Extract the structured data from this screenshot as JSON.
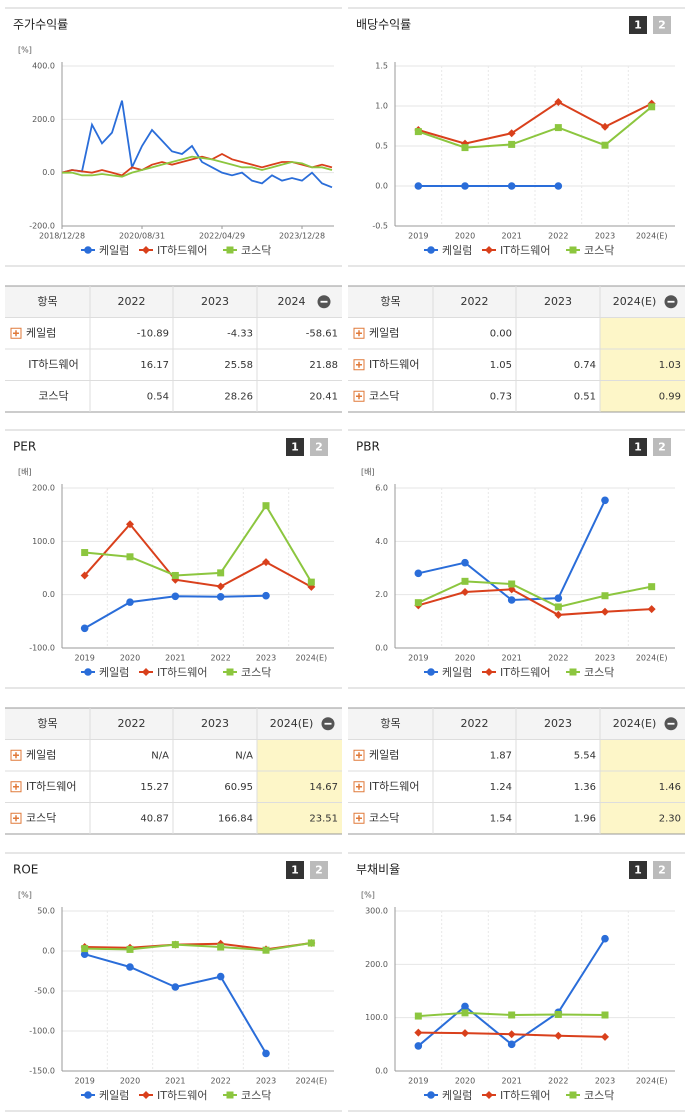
{
  "chart_data": [
    {
      "type": "line",
      "title": "주가수익률",
      "unit": "[%]",
      "markers": false,
      "categories": [
        "2018/12/28",
        null,
        null,
        null,
        null,
        null,
        null,
        null,
        "2020/08/31",
        null,
        null,
        null,
        null,
        null,
        null,
        null,
        "2022/04/29",
        null,
        null,
        null,
        null,
        null,
        null,
        null,
        "2023/12/28",
        null,
        null,
        null
      ],
      "series": [
        {
          "name": "케일럼",
          "color": "#2a6dd9",
          "values": [
            0,
            10,
            5,
            180,
            110,
            150,
            270,
            20,
            100,
            160,
            120,
            80,
            70,
            100,
            40,
            20,
            0,
            -10,
            0,
            -30,
            -40,
            -10,
            -30,
            -20,
            -30,
            0,
            -40,
            -55
          ]
        },
        {
          "name": "IT하드웨어",
          "color": "#d9401c",
          "values": [
            0,
            10,
            5,
            0,
            10,
            0,
            -10,
            20,
            10,
            30,
            40,
            30,
            40,
            50,
            60,
            50,
            70,
            50,
            40,
            30,
            20,
            30,
            40,
            40,
            30,
            20,
            30,
            20
          ]
        },
        {
          "name": "코스닥",
          "color": "#8cc63f",
          "values": [
            0,
            0,
            -10,
            -10,
            -5,
            -10,
            -15,
            0,
            10,
            20,
            30,
            40,
            50,
            60,
            55,
            50,
            40,
            30,
            20,
            20,
            10,
            20,
            30,
            40,
            35,
            20,
            20,
            10
          ]
        }
      ],
      "ylim": [
        -200,
        400
      ],
      "yticks": [
        {
          "value": -200,
          "label": "-200.0"
        },
        {
          "value": 0,
          "label": "0.0"
        },
        {
          "value": 200,
          "label": "200.0"
        },
        {
          "value": 400,
          "label": "400.0"
        }
      ]
    },
    {
      "type": "line",
      "title": "배당수익률",
      "buttons": [
        "1",
        "2"
      ],
      "markers": true,
      "categories": [
        "2019",
        "2020",
        "2021",
        "2022",
        "2023",
        "2024(E)"
      ],
      "series": [
        {
          "name": "케일럼",
          "color": "#2a6dd9",
          "values": [
            0,
            0,
            0,
            0,
            null,
            null
          ]
        },
        {
          "name": "IT하드웨어",
          "color": "#d9401c",
          "values": [
            0.7,
            0.53,
            0.66,
            1.05,
            0.74,
            1.03
          ]
        },
        {
          "name": "코스닥",
          "color": "#8cc63f",
          "values": [
            0.68,
            0.48,
            0.52,
            0.73,
            0.51,
            0.99
          ]
        }
      ],
      "ylim": [
        -0.5,
        1.5
      ],
      "yticks": [
        {
          "value": -0.5,
          "label": "-0.5"
        },
        {
          "value": 0,
          "label": "0.0"
        },
        {
          "value": 0.5,
          "label": "0.5"
        },
        {
          "value": 1,
          "label": "1.0"
        },
        {
          "value": 1.5,
          "label": "1.5"
        }
      ]
    },
    {
      "type": "line",
      "title": "PER",
      "unit": "[배]",
      "buttons": [
        "1",
        "2"
      ],
      "markers": true,
      "categories": [
        "2019",
        "2020",
        "2021",
        "2022",
        "2023",
        "2024(E)"
      ],
      "series": [
        {
          "name": "케일럼",
          "color": "#2a6dd9",
          "values": [
            -63,
            -14,
            -3,
            -4,
            -2,
            null
          ]
        },
        {
          "name": "IT하드웨어",
          "color": "#d9401c",
          "values": [
            36,
            132,
            28,
            15.27,
            60.95,
            14.67
          ]
        },
        {
          "name": "코스닥",
          "color": "#8cc63f",
          "values": [
            79,
            71,
            36,
            40.87,
            166.84,
            23.51
          ]
        }
      ],
      "ylim": [
        -100,
        200
      ],
      "yticks": [
        {
          "value": -100,
          "label": "-100.0"
        },
        {
          "value": 0,
          "label": "0.0"
        },
        {
          "value": 100,
          "label": "100.0"
        },
        {
          "value": 200,
          "label": "200.0"
        }
      ]
    },
    {
      "type": "line",
      "title": "PBR",
      "unit": "[배]",
      "buttons": [
        "1",
        "2"
      ],
      "markers": true,
      "categories": [
        "2019",
        "2020",
        "2021",
        "2022",
        "2023",
        "2024(E)"
      ],
      "series": [
        {
          "name": "케일럼",
          "color": "#2a6dd9",
          "values": [
            2.8,
            3.2,
            1.8,
            1.87,
            5.54,
            null
          ]
        },
        {
          "name": "IT하드웨어",
          "color": "#d9401c",
          "values": [
            1.6,
            2.1,
            2.2,
            1.24,
            1.36,
            1.46
          ]
        },
        {
          "name": "코스닥",
          "color": "#8cc63f",
          "values": [
            1.7,
            2.5,
            2.4,
            1.54,
            1.96,
            2.3
          ]
        }
      ],
      "ylim": [
        0,
        6
      ],
      "yticks": [
        {
          "value": 0,
          "label": "0.0"
        },
        {
          "value": 2,
          "label": "2.0"
        },
        {
          "value": 4,
          "label": "4.0"
        },
        {
          "value": 6,
          "label": "6.0"
        }
      ]
    },
    {
      "type": "line",
      "title": "ROE",
      "unit": "[%]",
      "buttons": [
        "1",
        "2"
      ],
      "markers": true,
      "categories": [
        "2019",
        "2020",
        "2021",
        "2022",
        "2023",
        "2024(E)"
      ],
      "series": [
        {
          "name": "케일럼",
          "color": "#2a6dd9",
          "values": [
            -4,
            -20,
            -45,
            -32,
            -128,
            null
          ]
        },
        {
          "name": "IT하드웨어",
          "color": "#d9401c",
          "values": [
            5,
            4,
            8,
            9,
            2,
            10
          ]
        },
        {
          "name": "코스닥",
          "color": "#8cc63f",
          "values": [
            3,
            2,
            8,
            5,
            1,
            10
          ]
        }
      ],
      "ylim": [
        -150,
        50
      ],
      "yticks": [
        {
          "value": -150,
          "label": "-150.0"
        },
        {
          "value": -100,
          "label": "-100.0"
        },
        {
          "value": -50,
          "label": "-50.0"
        },
        {
          "value": 0,
          "label": "0.0"
        },
        {
          "value": 50,
          "label": "50.0"
        }
      ]
    },
    {
      "type": "line",
      "title": "부채비율",
      "unit": "[%]",
      "buttons": [
        "1",
        "2"
      ],
      "markers": true,
      "categories": [
        "2019",
        "2020",
        "2021",
        "2022",
        "2023",
        "2024(E)"
      ],
      "series": [
        {
          "name": "케일럼",
          "color": "#2a6dd9",
          "values": [
            47,
            121,
            50,
            110,
            248,
            null
          ]
        },
        {
          "name": "IT하드웨어",
          "color": "#d9401c",
          "values": [
            72,
            71,
            69,
            66,
            64,
            null
          ]
        },
        {
          "name": "코스닥",
          "color": "#8cc63f",
          "values": [
            103,
            109,
            105,
            106,
            105,
            null
          ]
        }
      ],
      "ylim": [
        0,
        300
      ],
      "yticks": [
        {
          "value": 0,
          "label": "0.0"
        },
        {
          "value": 100,
          "label": "100.0"
        },
        {
          "value": 200,
          "label": "200.0"
        },
        {
          "value": 300,
          "label": "300.0"
        }
      ]
    }
  ],
  "tables": [
    {
      "header": [
        "항목",
        "2022",
        "2023",
        "2024"
      ],
      "highlight_last": false,
      "icons": [
        true,
        false,
        false
      ],
      "rows": [
        [
          "케일럼",
          "-10.89",
          "-4.33",
          "-58.61"
        ],
        [
          "IT하드웨어",
          "16.17",
          "25.58",
          "21.88"
        ],
        [
          "코스닥",
          "0.54",
          "28.26",
          "20.41"
        ]
      ]
    },
    {
      "header": [
        "항목",
        "2022",
        "2023",
        "2024(E)"
      ],
      "highlight_last": true,
      "icons": [
        true,
        true,
        true
      ],
      "rows": [
        [
          "케일럼",
          "0.00",
          null,
          null
        ],
        [
          "IT하드웨어",
          "1.05",
          "0.74",
          "1.03"
        ],
        [
          "코스닥",
          "0.73",
          "0.51",
          "0.99"
        ]
      ]
    },
    {
      "header": [
        "항목",
        "2022",
        "2023",
        "2024(E)"
      ],
      "highlight_last": true,
      "icons": [
        true,
        true,
        true
      ],
      "rows": [
        [
          "케일럼",
          "N/A",
          "N/A",
          null
        ],
        [
          "IT하드웨어",
          "15.27",
          "60.95",
          "14.67"
        ],
        [
          "코스닥",
          "40.87",
          "166.84",
          "23.51"
        ]
      ]
    },
    {
      "header": [
        "항목",
        "2022",
        "2023",
        "2024(E)"
      ],
      "highlight_last": true,
      "icons": [
        true,
        true,
        true
      ],
      "rows": [
        [
          "케일럼",
          "1.87",
          "5.54",
          null
        ],
        [
          "IT하드웨어",
          "1.24",
          "1.36",
          "1.46"
        ],
        [
          "코스닥",
          "1.54",
          "1.96",
          "2.30"
        ]
      ]
    }
  ]
}
